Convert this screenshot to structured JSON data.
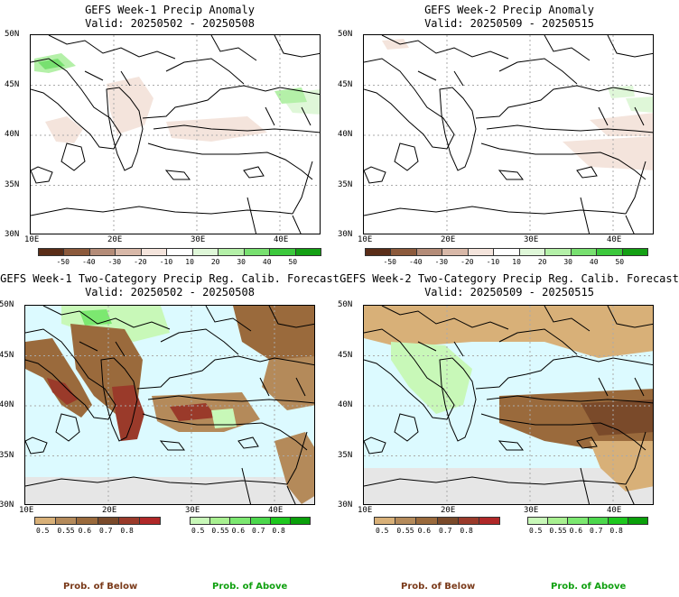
{
  "panels": [
    {
      "title": "GEFS Week-1 Precip Anomaly",
      "valid": "Valid: 20250502 - 20250508"
    },
    {
      "title": "GEFS Week-2 Precip Anomaly",
      "valid": "Valid: 20250509 - 20250515"
    },
    {
      "title": "GEFS Week-1 Two-Category Precip Reg. Calib. Forecast",
      "valid": "Valid: 20250502 - 20250508"
    },
    {
      "title": "GEFS Week-2 Two-Category Precip Reg. Calib. Forecast",
      "valid": "Valid: 20250509 - 20250515"
    }
  ],
  "axes": {
    "lat": [
      "50N",
      "45N",
      "40N",
      "35N",
      "30N"
    ],
    "lon": [
      "10E",
      "20E",
      "30E",
      "40E"
    ]
  },
  "anomaly_colorbar": {
    "labels": [
      "-50",
      "-40",
      "-30",
      "-20",
      "-10",
      "10",
      "20",
      "30",
      "40",
      "50"
    ],
    "colors": [
      "#5a2d18",
      "#8c5a3c",
      "#b48c78",
      "#d8b8a8",
      "#f4e4dc",
      "#ffffff",
      "#dff7d8",
      "#b4f0a8",
      "#78e070",
      "#3cc83c",
      "#14a014"
    ]
  },
  "prob_below": {
    "labels": [
      "0.5",
      "0.55",
      "0.6",
      "0.7",
      "0.8"
    ],
    "colors": [
      "#d8b078",
      "#b48a5a",
      "#9a6a3c",
      "#7a4a2a",
      "#9a3a2a",
      "#b02828"
    ],
    "caption": "Prob. of Below"
  },
  "prob_above": {
    "labels": [
      "0.5",
      "0.55",
      "0.6",
      "0.7",
      "0.8"
    ],
    "colors": [
      "#c8f8b8",
      "#a8f090",
      "#7ce870",
      "#4cd84c",
      "#1ec81e",
      "#0aa00a"
    ],
    "caption": "Prob. of Above"
  },
  "colors": {
    "sea_fill": "#dcfaff",
    "gray_fill": "#e6e6e6",
    "land_fill": "#ffffff"
  }
}
